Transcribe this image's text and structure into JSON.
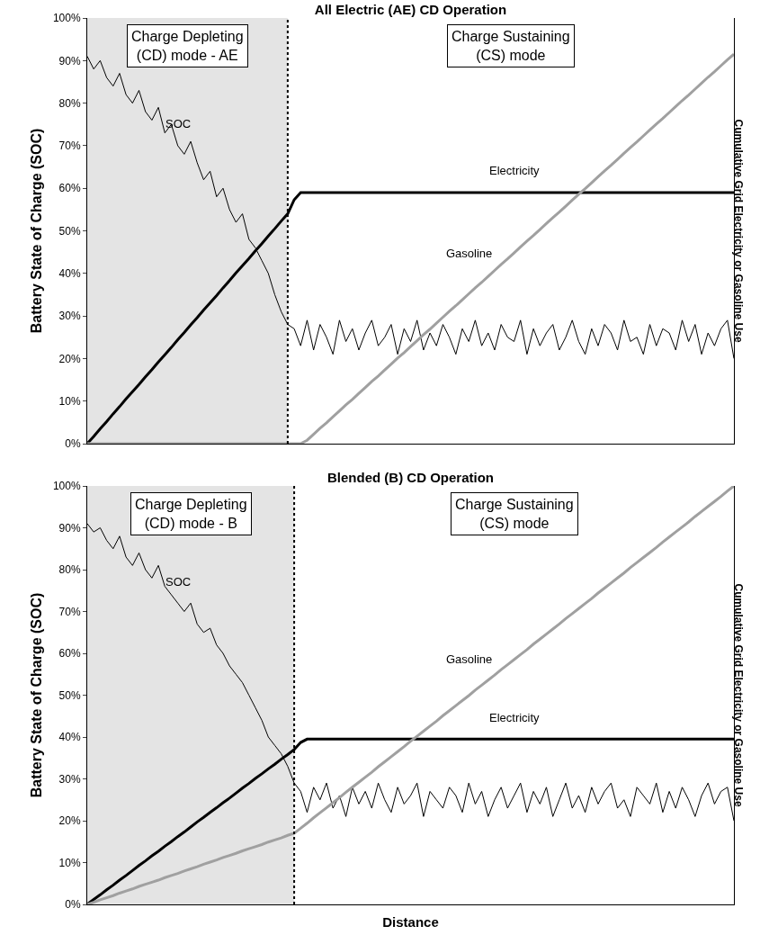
{
  "chart_data": [
    {
      "type": "line",
      "title": "All Electric (AE) CD Operation",
      "ylabel": "Battery State of Charge (SOC)",
      "y2label": "Cumulative Grid Electricity or Gasoline Use",
      "tick_labels": "y",
      "ylim": [
        0,
        100
      ],
      "yticks": [
        {
          "value": 0,
          "label": "0%"
        },
        {
          "value": 10,
          "label": "10%"
        },
        {
          "value": 20,
          "label": "20%"
        },
        {
          "value": 30,
          "label": "30%"
        },
        {
          "value": 40,
          "label": "40%"
        },
        {
          "value": 50,
          "label": "50%"
        },
        {
          "value": 60,
          "label": "60%"
        },
        {
          "value": 70,
          "label": "70%"
        },
        {
          "value": 80,
          "label": "80%"
        },
        {
          "value": 90,
          "label": "90%"
        },
        {
          "value": 100,
          "label": "100%"
        }
      ],
      "grid": false,
      "legend": false,
      "marker": "none",
      "categories": [
        null,
        null,
        null,
        null,
        null,
        null,
        null,
        null,
        null,
        null,
        null,
        null,
        null,
        null,
        null,
        null,
        null,
        null,
        null,
        null,
        null,
        null,
        null,
        null,
        null,
        null,
        null,
        null,
        null,
        null,
        null,
        null,
        null,
        null,
        null,
        null,
        null,
        null,
        null,
        null,
        null,
        null,
        null,
        null,
        null,
        null,
        null,
        null,
        null,
        null,
        null,
        null,
        null,
        null,
        null,
        null,
        null,
        null,
        null,
        null,
        null,
        null,
        null,
        null,
        null,
        null,
        null,
        null,
        null,
        null,
        null,
        null,
        null,
        null,
        null,
        null,
        null,
        null,
        null,
        null,
        null,
        null,
        null,
        null,
        null,
        null,
        null,
        null,
        null,
        null,
        null,
        null,
        null,
        null,
        null,
        null,
        null,
        null,
        null,
        null,
        null
      ],
      "series": [
        {
          "name": "SOC",
          "color": "#000000",
          "values": [
            91,
            88,
            90,
            86,
            84,
            87,
            82,
            80,
            83,
            78,
            76,
            79,
            73,
            75,
            70,
            68,
            71,
            66,
            62,
            64,
            58,
            60,
            55,
            52,
            54,
            48,
            46,
            43,
            40,
            35,
            31,
            28,
            27,
            23,
            29,
            22,
            28,
            25,
            21,
            29,
            24,
            27,
            22,
            26,
            29,
            23,
            25,
            28,
            21,
            27,
            24,
            29,
            22,
            26,
            23,
            28,
            25,
            21,
            27,
            24,
            29,
            23,
            26,
            22,
            28,
            25,
            24,
            29,
            21,
            27,
            23,
            26,
            28,
            22,
            25,
            29,
            24,
            21,
            27,
            23,
            28,
            26,
            22,
            29,
            24,
            25,
            21,
            28,
            23,
            27,
            26,
            22,
            29,
            24,
            28,
            21,
            26,
            23,
            27,
            29,
            20
          ]
        },
        {
          "name": "Electricity",
          "color": "#000000",
          "values": [
            0,
            1.7,
            3.5,
            5.2,
            7,
            8.7,
            10.5,
            12.2,
            13.9,
            15.7,
            17.4,
            19.2,
            20.9,
            22.6,
            24.4,
            26.1,
            27.9,
            29.6,
            31.4,
            33.1,
            34.8,
            36.6,
            38.3,
            40.1,
            41.8,
            43.5,
            45.3,
            47,
            48.8,
            50.5,
            52.3,
            54,
            57.3,
            59,
            59,
            59,
            59,
            59,
            59,
            59,
            59,
            59,
            59,
            59,
            59,
            59,
            59,
            59,
            59,
            59,
            59,
            59,
            59,
            59,
            59,
            59,
            59,
            59,
            59,
            59,
            59,
            59,
            59,
            59,
            59,
            59,
            59,
            59,
            59,
            59,
            59,
            59,
            59,
            59,
            59,
            59,
            59,
            59,
            59,
            59,
            59,
            59,
            59,
            59,
            59,
            59,
            59,
            59,
            59,
            59,
            59,
            59,
            59,
            59,
            59,
            59,
            59,
            59,
            59,
            59,
            59
          ]
        },
        {
          "name": "Gasoline",
          "color": "#a0a0a0",
          "values": [
            0,
            0,
            0,
            0,
            0,
            0,
            0,
            0,
            0,
            0,
            0,
            0,
            0,
            0,
            0,
            0,
            0,
            0,
            0,
            0,
            0,
            0,
            0,
            0,
            0,
            0,
            0,
            0,
            0,
            0,
            0,
            0,
            0,
            0,
            0.8,
            2.2,
            3.6,
            4.9,
            6.3,
            7.7,
            9.1,
            10.4,
            11.8,
            13.2,
            14.6,
            15.9,
            17.3,
            18.7,
            20.1,
            21.4,
            22.8,
            24.2,
            25.6,
            26.9,
            28.3,
            29.7,
            31.1,
            32.4,
            33.8,
            35.2,
            36.6,
            37.9,
            39.3,
            40.7,
            42.1,
            43.4,
            44.8,
            46.2,
            47.6,
            48.9,
            50.3,
            51.7,
            53.1,
            54.4,
            55.8,
            57.2,
            58.6,
            59.9,
            61.3,
            62.7,
            64.1,
            65.4,
            66.8,
            68.2,
            69.6,
            70.9,
            72.3,
            73.7,
            75.1,
            76.4,
            77.8,
            79.2,
            80.6,
            81.9,
            83.3,
            84.7,
            86.1,
            87.4,
            88.8,
            90.2,
            91.5
          ]
        }
      ],
      "annotations": [
        "Charge Depleting\n(CD) mode - AE",
        "Charge Sustaining\n(CS) mode"
      ]
    },
    {
      "type": "line",
      "title": "Blended (B) CD Operation",
      "xlabel": "Distance",
      "ylabel": "Battery State of Charge (SOC)",
      "y2label": "Cumulative Grid Electricity or Gasoline Use",
      "tick_labels": "y",
      "ylim": [
        0,
        100
      ],
      "yticks": [
        {
          "value": 0,
          "label": "0%"
        },
        {
          "value": 10,
          "label": "10%"
        },
        {
          "value": 20,
          "label": "20%"
        },
        {
          "value": 30,
          "label": "30%"
        },
        {
          "value": 40,
          "label": "40%"
        },
        {
          "value": 50,
          "label": "50%"
        },
        {
          "value": 60,
          "label": "60%"
        },
        {
          "value": 70,
          "label": "70%"
        },
        {
          "value": 80,
          "label": "80%"
        },
        {
          "value": 90,
          "label": "90%"
        },
        {
          "value": 100,
          "label": "100%"
        }
      ],
      "grid": false,
      "legend": false,
      "marker": "none",
      "categories": [
        null,
        null,
        null,
        null,
        null,
        null,
        null,
        null,
        null,
        null,
        null,
        null,
        null,
        null,
        null,
        null,
        null,
        null,
        null,
        null,
        null,
        null,
        null,
        null,
        null,
        null,
        null,
        null,
        null,
        null,
        null,
        null,
        null,
        null,
        null,
        null,
        null,
        null,
        null,
        null,
        null,
        null,
        null,
        null,
        null,
        null,
        null,
        null,
        null,
        null,
        null,
        null,
        null,
        null,
        null,
        null,
        null,
        null,
        null,
        null,
        null,
        null,
        null,
        null,
        null,
        null,
        null,
        null,
        null,
        null,
        null,
        null,
        null,
        null,
        null,
        null,
        null,
        null,
        null,
        null,
        null,
        null,
        null,
        null,
        null,
        null,
        null,
        null,
        null,
        null,
        null,
        null,
        null,
        null,
        null,
        null,
        null,
        null,
        null,
        null,
        null
      ],
      "series": [
        {
          "name": "SOC",
          "color": "#000000",
          "values": [
            91,
            89,
            90,
            87,
            85,
            88,
            83,
            81,
            84,
            80,
            78,
            81,
            76,
            74,
            72,
            70,
            72,
            67,
            65,
            66,
            62,
            60,
            57,
            55,
            53,
            50,
            47,
            44,
            40,
            38,
            36,
            33,
            29,
            27,
            22,
            28,
            25,
            29,
            23,
            26,
            21,
            28,
            24,
            27,
            23,
            29,
            25,
            22,
            28,
            24,
            26,
            29,
            21,
            27,
            25,
            23,
            28,
            26,
            22,
            29,
            24,
            27,
            21,
            25,
            28,
            23,
            26,
            29,
            22,
            27,
            24,
            28,
            21,
            25,
            29,
            23,
            26,
            22,
            28,
            24,
            27,
            29,
            23,
            25,
            21,
            28,
            26,
            24,
            29,
            22,
            27,
            23,
            28,
            25,
            21,
            26,
            29,
            24,
            27,
            28,
            20
          ]
        },
        {
          "name": "Electricity",
          "color": "#000000",
          "values": [
            0,
            1.2,
            2.3,
            3.5,
            4.6,
            5.8,
            6.9,
            8.1,
            9.3,
            10.4,
            11.6,
            12.7,
            13.9,
            15,
            16.2,
            17.3,
            18.5,
            19.7,
            20.8,
            22,
            23.1,
            24.3,
            25.4,
            26.6,
            27.8,
            28.9,
            30.1,
            31.2,
            32.4,
            33.5,
            34.7,
            35.8,
            37,
            38.7,
            39.5,
            39.5,
            39.5,
            39.5,
            39.5,
            39.5,
            39.5,
            39.5,
            39.5,
            39.5,
            39.5,
            39.5,
            39.5,
            39.5,
            39.5,
            39.5,
            39.5,
            39.5,
            39.5,
            39.5,
            39.5,
            39.5,
            39.5,
            39.5,
            39.5,
            39.5,
            39.5,
            39.5,
            39.5,
            39.5,
            39.5,
            39.5,
            39.5,
            39.5,
            39.5,
            39.5,
            39.5,
            39.5,
            39.5,
            39.5,
            39.5,
            39.5,
            39.5,
            39.5,
            39.5,
            39.5,
            39.5,
            39.5,
            39.5,
            39.5,
            39.5,
            39.5,
            39.5,
            39.5,
            39.5,
            39.5,
            39.5,
            39.5,
            39.5,
            39.5,
            39.5,
            39.5,
            39.5,
            39.5,
            39.5,
            39.5,
            39.5
          ]
        },
        {
          "name": "Gasoline",
          "color": "#a0a0a0",
          "values": [
            0,
            0.5,
            1.1,
            1.6,
            2.1,
            2.7,
            3.2,
            3.7,
            4.3,
            4.8,
            5.3,
            5.8,
            6.4,
            6.9,
            7.4,
            8,
            8.5,
            9,
            9.6,
            10.1,
            10.6,
            11.2,
            11.7,
            12.2,
            12.8,
            13.3,
            13.8,
            14.3,
            14.9,
            15.4,
            15.9,
            16.5,
            17,
            18.2,
            19.4,
            20.7,
            21.9,
            23.1,
            24.3,
            25.5,
            26.8,
            28,
            29.2,
            30.4,
            31.6,
            32.9,
            34.1,
            35.3,
            36.5,
            37.7,
            39,
            40.2,
            41.4,
            42.6,
            43.8,
            45.1,
            46.3,
            47.5,
            48.7,
            49.9,
            51.2,
            52.4,
            53.6,
            54.8,
            56.1,
            57.3,
            58.5,
            59.7,
            60.9,
            62.2,
            63.4,
            64.6,
            65.8,
            67,
            68.3,
            69.5,
            70.7,
            71.9,
            73.1,
            74.4,
            75.6,
            76.8,
            78,
            79.2,
            80.5,
            81.7,
            82.9,
            84.1,
            85.3,
            86.6,
            87.8,
            89,
            90.2,
            91.4,
            92.7,
            93.9,
            95.1,
            96.3,
            97.5,
            98.8,
            100
          ]
        }
      ],
      "annotations": [
        "Charge Depleting\n(CD) mode - B",
        "Charge Sustaining\n(CS) mode"
      ]
    }
  ]
}
